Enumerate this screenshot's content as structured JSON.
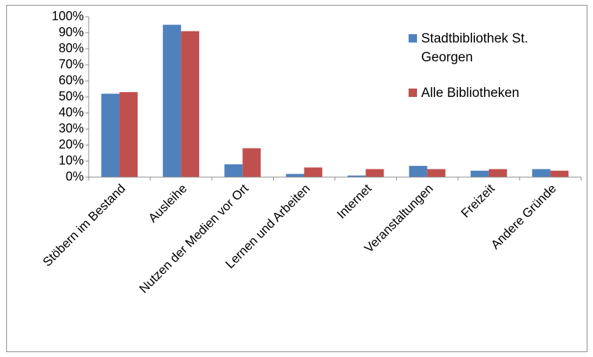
{
  "chart_data": {
    "type": "bar",
    "categories": [
      "Stöbern im Bestand",
      "Ausleihe",
      "Nutzen der Medien vor Ort",
      "Lernen und Arbeiten",
      "Internet",
      "Veranstaltungen",
      "Freizeit",
      "Andere Gründe"
    ],
    "series": [
      {
        "name": "Stadtbibliothek St. Georgen",
        "color": "#4f81bd",
        "values": [
          52,
          95,
          8,
          2,
          1,
          7,
          4,
          5
        ]
      },
      {
        "name": "Alle Bibliotheken",
        "color": "#c0504d",
        "values": [
          53,
          91,
          18,
          6,
          5,
          5,
          5,
          4
        ]
      }
    ],
    "ylim": [
      0,
      100
    ],
    "yticks": [
      {
        "value": 0,
        "label": "0%"
      },
      {
        "value": 10,
        "label": "10%"
      },
      {
        "value": 20,
        "label": "20%"
      },
      {
        "value": 30,
        "label": "30%"
      },
      {
        "value": 40,
        "label": "40%"
      },
      {
        "value": 50,
        "label": "50%"
      },
      {
        "value": 60,
        "label": "60%"
      },
      {
        "value": 70,
        "label": "70%"
      },
      {
        "value": 80,
        "label": "80%"
      },
      {
        "value": 90,
        "label": "90%"
      },
      {
        "value": 100,
        "label": "100%"
      }
    ],
    "grid": false,
    "legend": "right"
  }
}
